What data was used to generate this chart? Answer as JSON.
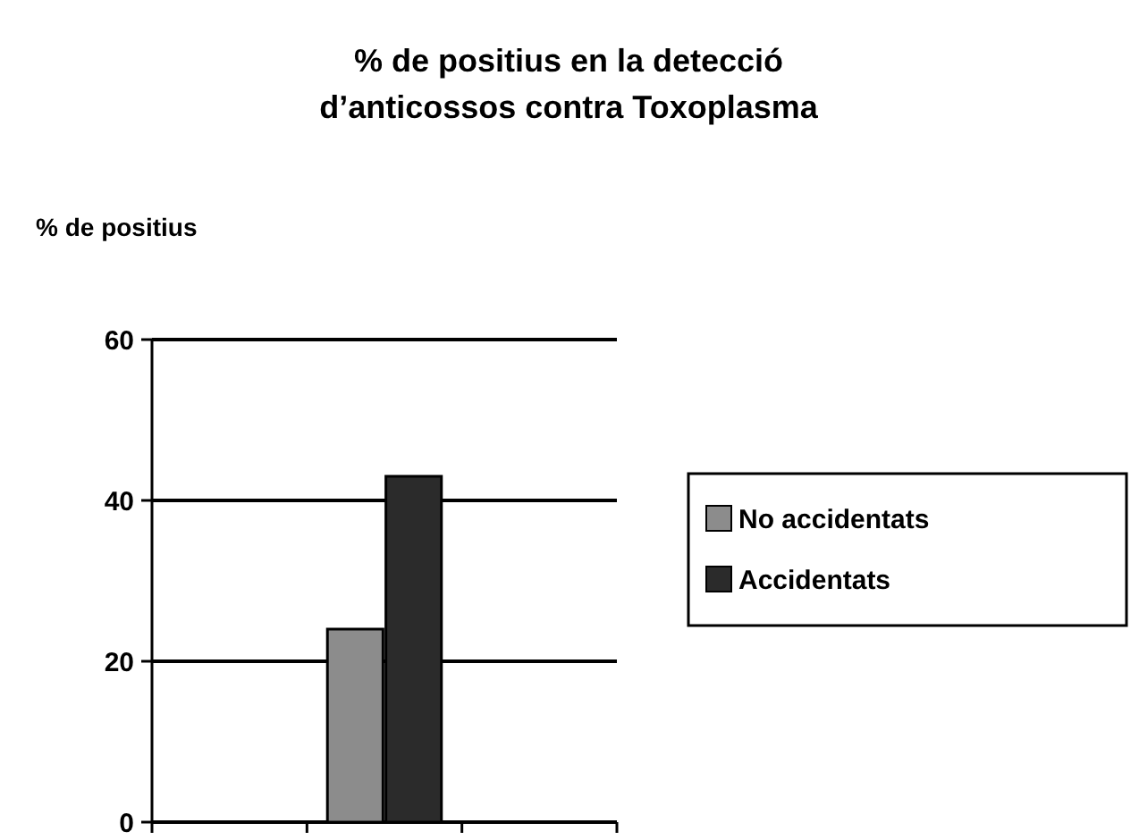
{
  "chart_data": {
    "type": "bar",
    "title": "% de positius en la detecció\nd’anticossos contra Toxoplasma",
    "ylabel": "% de positius",
    "categories": [
      null,
      null,
      null
    ],
    "series": [
      {
        "name": "No accidentats",
        "color": "#8c8c8c",
        "values": [
          null,
          24,
          null
        ]
      },
      {
        "name": "Accidentats",
        "color": "#2b2b2b",
        "values": [
          null,
          43,
          null
        ]
      }
    ],
    "ylim": [
      0,
      60
    ],
    "yticks": [
      0,
      20,
      40,
      60
    ],
    "grid": "y",
    "legend": "right"
  }
}
